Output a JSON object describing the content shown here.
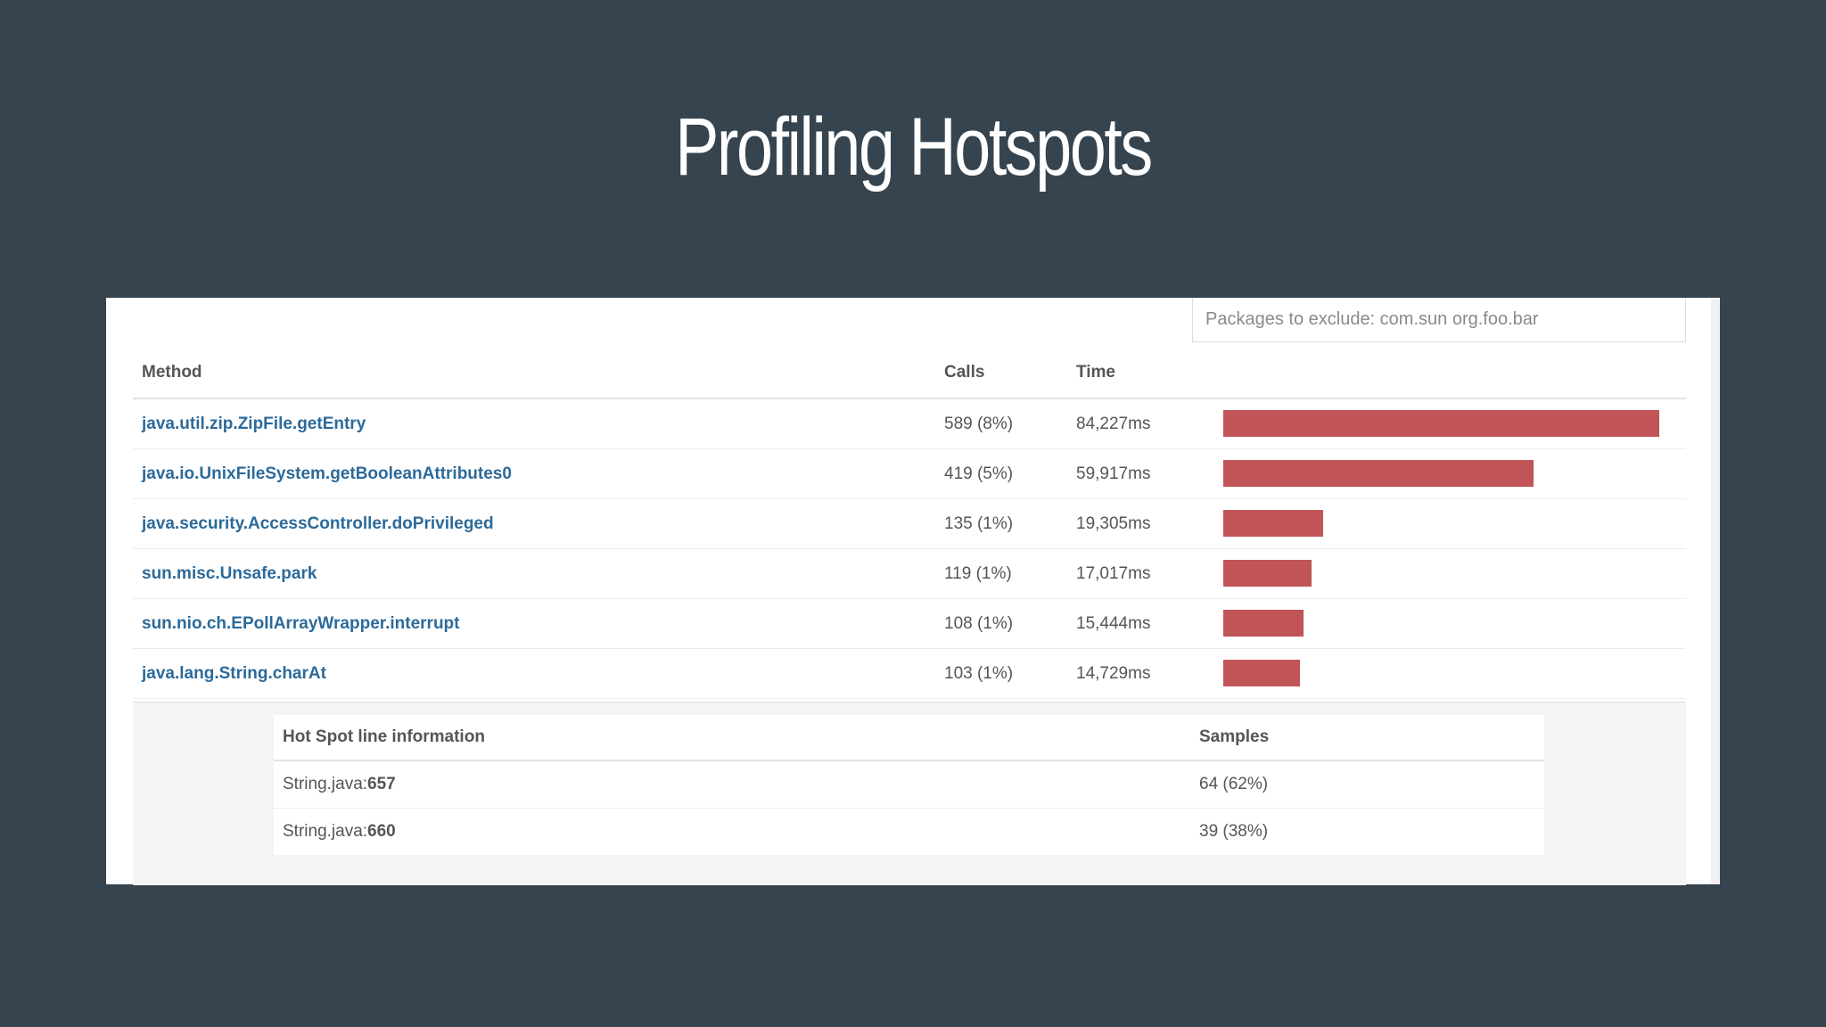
{
  "slide": {
    "title": "Profiling Hotspots"
  },
  "filter": {
    "placeholder": "Packages to exclude: com.sun org.foo.bar"
  },
  "methods_table": {
    "headers": {
      "method": "Method",
      "calls": "Calls",
      "time": "Time"
    },
    "rows": [
      {
        "method": "java.util.zip.ZipFile.getEntry",
        "calls": "589 (8%)",
        "time": "84,227ms",
        "time_ms": 84227
      },
      {
        "method": "java.io.UnixFileSystem.getBooleanAttributes0",
        "calls": "419 (5%)",
        "time": "59,917ms",
        "time_ms": 59917
      },
      {
        "method": "java.security.AccessController.doPrivileged",
        "calls": "135 (1%)",
        "time": "19,305ms",
        "time_ms": 19305
      },
      {
        "method": "sun.misc.Unsafe.park",
        "calls": "119 (1%)",
        "time": "17,017ms",
        "time_ms": 17017
      },
      {
        "method": "sun.nio.ch.EPollArrayWrapper.interrupt",
        "calls": "108 (1%)",
        "time": "15,444ms",
        "time_ms": 15444
      },
      {
        "method": "java.lang.String.charAt",
        "calls": "103 (1%)",
        "time": "14,729ms",
        "time_ms": 14729
      }
    ]
  },
  "hotspot_detail": {
    "headers": {
      "line_info": "Hot Spot line information",
      "samples": "Samples"
    },
    "rows": [
      {
        "file": "String.java:",
        "line": "657",
        "samples": "64 (62%)"
      },
      {
        "file": "String.java:",
        "line": "660",
        "samples": "39 (38%)"
      }
    ]
  },
  "colors": {
    "background": "#36444f",
    "bar": "#c05457",
    "link": "#2c6a9a"
  }
}
